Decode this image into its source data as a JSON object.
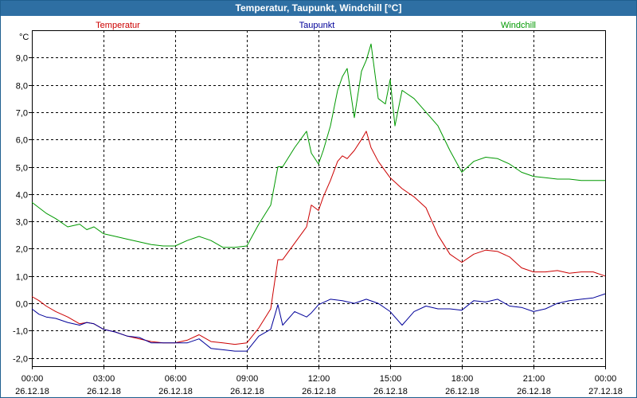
{
  "window": {
    "title": "Temperatur, Taupunkt, Windchill [°C]"
  },
  "chart_data": {
    "type": "line",
    "title": "Temperatur, Taupunkt, Windchill [°C]",
    "ylabel": "°C",
    "xlabel": "",
    "ylim": [
      -2.3,
      10.0
    ],
    "xlim": [
      0,
      24
    ],
    "grid": true,
    "yticks": [
      -2,
      -1,
      0,
      1,
      2,
      3,
      4,
      5,
      6,
      7,
      8,
      9
    ],
    "ytick_labels": [
      "-2,0",
      "-1,0",
      "0,0",
      "1,0",
      "2,0",
      "3,0",
      "4,0",
      "5,0",
      "6,0",
      "7,0",
      "8,0",
      "9,0"
    ],
    "xticks": [
      0,
      3,
      6,
      9,
      12,
      15,
      18,
      21,
      24
    ],
    "xtick_labels": [
      [
        "00:00",
        "26.12.18"
      ],
      [
        "03:00",
        "26.12.18"
      ],
      [
        "06:00",
        "26.12.18"
      ],
      [
        "09:00",
        "26.12.18"
      ],
      [
        "12:00",
        "26.12.18"
      ],
      [
        "15:00",
        "26.12.18"
      ],
      [
        "18:00",
        "26.12.18"
      ],
      [
        "21:00",
        "26.12.18"
      ],
      [
        "00:00",
        "27.12.18"
      ]
    ],
    "series": [
      {
        "name": "Temperatur",
        "color": "#cc0000",
        "legend_position": "left",
        "x": [
          0,
          0.3,
          0.6,
          1.0,
          1.5,
          2.0,
          2.3,
          2.6,
          3.0,
          3.5,
          4.0,
          4.5,
          5.0,
          5.5,
          6.0,
          6.5,
          7.0,
          7.5,
          8.0,
          8.5,
          9.0,
          9.5,
          10.0,
          10.3,
          10.5,
          11.0,
          11.5,
          11.7,
          12.0,
          12.2,
          12.5,
          12.8,
          13.0,
          13.2,
          13.5,
          13.8,
          14.0,
          14.2,
          14.5,
          15.0,
          15.5,
          16.0,
          16.5,
          17.0,
          17.5,
          18.0,
          18.5,
          19.0,
          19.5,
          20.0,
          20.5,
          21.0,
          21.5,
          22.0,
          22.5,
          23.0,
          23.5,
          24.0
        ],
        "values": [
          0.25,
          0.1,
          -0.1,
          -0.3,
          -0.5,
          -0.75,
          -0.7,
          -0.75,
          -0.95,
          -1.05,
          -1.2,
          -1.3,
          -1.4,
          -1.45,
          -1.45,
          -1.35,
          -1.15,
          -1.4,
          -1.45,
          -1.5,
          -1.45,
          -0.9,
          -0.2,
          1.6,
          1.6,
          2.2,
          2.8,
          3.6,
          3.4,
          3.9,
          4.5,
          5.2,
          5.4,
          5.3,
          5.6,
          6.0,
          6.3,
          5.7,
          5.2,
          4.6,
          4.2,
          3.9,
          3.5,
          2.5,
          1.8,
          1.5,
          1.8,
          1.95,
          1.9,
          1.7,
          1.3,
          1.15,
          1.15,
          1.2,
          1.1,
          1.15,
          1.15,
          1.0
        ]
      },
      {
        "name": "Taupunkt",
        "color": "#000099",
        "legend_position": "center",
        "x": [
          0,
          0.3,
          0.6,
          1.0,
          1.5,
          2.0,
          2.3,
          2.6,
          3.0,
          3.5,
          4.0,
          4.5,
          5.0,
          5.5,
          6.0,
          6.5,
          7.0,
          7.5,
          8.0,
          8.5,
          9.0,
          9.5,
          10.0,
          10.3,
          10.5,
          11.0,
          11.5,
          11.7,
          12.0,
          12.5,
          13.0,
          13.5,
          14.0,
          14.5,
          15.0,
          15.5,
          16.0,
          16.5,
          17.0,
          17.5,
          18.0,
          18.5,
          19.0,
          19.5,
          20.0,
          20.5,
          21.0,
          21.5,
          22.0,
          22.5,
          23.0,
          23.5,
          24.0
        ],
        "values": [
          -0.2,
          -0.4,
          -0.5,
          -0.55,
          -0.7,
          -0.8,
          -0.7,
          -0.75,
          -0.95,
          -1.05,
          -1.2,
          -1.25,
          -1.45,
          -1.45,
          -1.45,
          -1.45,
          -1.3,
          -1.65,
          -1.7,
          -1.75,
          -1.75,
          -1.2,
          -0.95,
          -0.05,
          -0.8,
          -0.3,
          -0.5,
          -0.35,
          -0.05,
          0.15,
          0.1,
          0.0,
          0.15,
          0.0,
          -0.3,
          -0.8,
          -0.3,
          -0.1,
          -0.2,
          -0.2,
          -0.25,
          0.1,
          0.05,
          0.15,
          -0.1,
          -0.15,
          -0.3,
          -0.2,
          0.0,
          0.1,
          0.15,
          0.2,
          0.35
        ]
      },
      {
        "name": "Windchill",
        "color": "#009900",
        "legend_position": "right",
        "x": [
          0,
          0.3,
          0.6,
          1.0,
          1.5,
          2.0,
          2.3,
          2.6,
          3.0,
          3.5,
          4.0,
          4.5,
          5.0,
          5.5,
          6.0,
          6.5,
          7.0,
          7.5,
          8.0,
          8.5,
          9.0,
          9.5,
          10.0,
          10.3,
          10.5,
          11.0,
          11.5,
          11.7,
          12.0,
          12.2,
          12.5,
          12.8,
          13.0,
          13.2,
          13.5,
          13.8,
          14.0,
          14.2,
          14.5,
          14.8,
          15.0,
          15.2,
          15.5,
          16.0,
          16.5,
          17.0,
          17.5,
          18.0,
          18.5,
          19.0,
          19.5,
          20.0,
          20.5,
          21.0,
          21.5,
          22.0,
          22.5,
          23.0,
          23.5,
          24.0
        ],
        "values": [
          3.7,
          3.5,
          3.3,
          3.1,
          2.8,
          2.9,
          2.7,
          2.8,
          2.55,
          2.45,
          2.35,
          2.25,
          2.15,
          2.1,
          2.1,
          2.3,
          2.45,
          2.3,
          2.05,
          2.05,
          2.1,
          2.9,
          3.6,
          5.0,
          5.0,
          5.7,
          6.3,
          5.5,
          5.1,
          5.6,
          6.5,
          7.8,
          8.3,
          8.6,
          6.8,
          8.5,
          8.9,
          9.5,
          7.5,
          7.3,
          8.2,
          6.5,
          7.8,
          7.5,
          7.0,
          6.5,
          5.6,
          4.8,
          5.2,
          5.35,
          5.3,
          5.1,
          4.8,
          4.65,
          4.6,
          4.55,
          4.55,
          4.5,
          4.5,
          4.5
        ]
      }
    ]
  }
}
